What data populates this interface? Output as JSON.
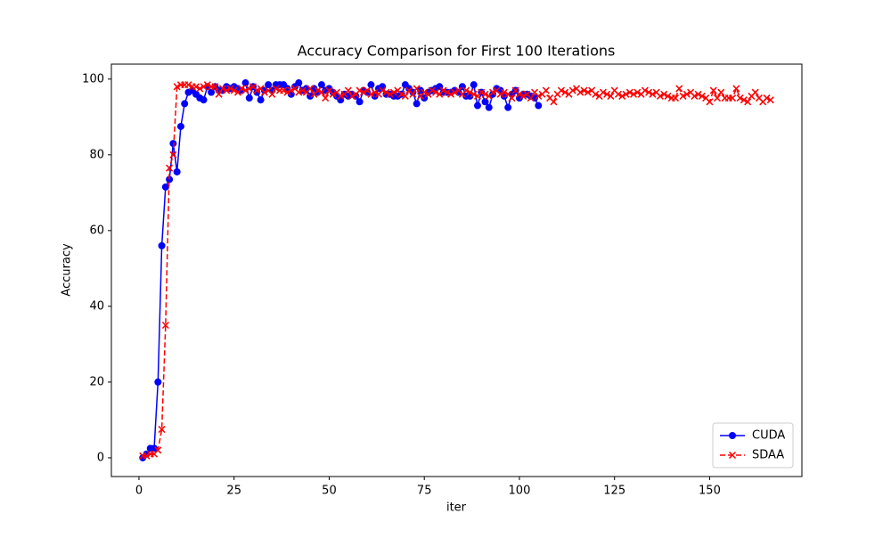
{
  "chart_data": {
    "type": "line",
    "title": "Accuracy Comparison for First 100 Iterations",
    "x_label": "iter",
    "y_label": "Accuracy",
    "xlim": [
      -7.25,
      174.25
    ],
    "xticks": [
      0,
      25,
      50,
      75,
      100,
      125,
      150
    ],
    "ylim": [
      -4.95,
      103.95
    ],
    "yticks": [
      0,
      20,
      40,
      60,
      80,
      100
    ],
    "grid": false,
    "legend": "lower right",
    "series": [
      {
        "name": "CUDA",
        "color": "#0000ff",
        "marker": "circle",
        "linestyle": "solid",
        "x": [
          1,
          2,
          3,
          4,
          5,
          6,
          7,
          8,
          9,
          10,
          11,
          12,
          13,
          14,
          15,
          16,
          17,
          18,
          19,
          20,
          21,
          22,
          23,
          24,
          25,
          26,
          27,
          28,
          29,
          30,
          31,
          32,
          33,
          34,
          35,
          36,
          37,
          38,
          39,
          40,
          41,
          42,
          43,
          44,
          45,
          46,
          47,
          48,
          49,
          50,
          51,
          52,
          53,
          54,
          55,
          56,
          57,
          58,
          59,
          60,
          61,
          62,
          63,
          64,
          65,
          66,
          67,
          68,
          69,
          70,
          71,
          72,
          73,
          74,
          75,
          76,
          77,
          78,
          79,
          80,
          81,
          82,
          83,
          84,
          85,
          86,
          87,
          88,
          89,
          90,
          91,
          92,
          93,
          94,
          95,
          96,
          97,
          98,
          99,
          100,
          101,
          102,
          103,
          104,
          105
        ],
        "values": [
          0,
          1,
          2.5,
          2.5,
          20,
          56,
          71.5,
          73.5,
          83,
          75.5,
          87.5,
          93.5,
          96.5,
          97,
          96,
          95,
          94.5,
          98,
          96.5,
          98,
          97,
          97,
          98,
          97.5,
          98,
          97.5,
          97,
          99,
          95,
          98,
          96.5,
          94.5,
          97,
          98.5,
          97,
          98.5,
          98.5,
          98.5,
          97.5,
          96,
          98,
          99,
          97,
          97.5,
          95.5,
          97.5,
          96.5,
          98.5,
          97,
          97.5,
          96.5,
          95.5,
          94.5,
          96,
          95.5,
          96,
          95.5,
          94,
          97,
          96.5,
          98.5,
          95.5,
          97.5,
          98,
          96,
          96,
          95.5,
          95.5,
          96,
          98.5,
          97.5,
          96.5,
          93.5,
          97,
          95,
          96.5,
          97,
          97.5,
          98,
          96.5,
          96.5,
          96.5,
          97,
          96.5,
          98,
          95.5,
          95.5,
          98.5,
          93,
          96.5,
          94,
          92.5,
          96,
          97.5,
          97,
          95.5,
          92.5,
          96,
          97,
          95,
          96,
          96,
          95.5,
          95,
          93
        ]
      },
      {
        "name": "SDAA",
        "color": "#ff0000",
        "marker": "x",
        "linestyle": "dashed",
        "x": [
          1,
          2,
          3,
          4,
          5,
          6,
          7,
          8,
          9,
          10,
          11,
          12,
          13,
          14,
          15,
          16,
          17,
          18,
          19,
          20,
          21,
          22,
          23,
          24,
          25,
          26,
          27,
          28,
          29,
          30,
          31,
          32,
          33,
          34,
          35,
          36,
          37,
          38,
          39,
          40,
          41,
          42,
          43,
          44,
          45,
          46,
          47,
          48,
          49,
          50,
          51,
          52,
          53,
          54,
          55,
          56,
          57,
          58,
          59,
          60,
          61,
          62,
          63,
          64,
          65,
          66,
          67,
          68,
          69,
          70,
          71,
          72,
          73,
          74,
          75,
          76,
          77,
          78,
          79,
          80,
          81,
          82,
          83,
          84,
          85,
          86,
          87,
          88,
          89,
          90,
          91,
          92,
          93,
          94,
          95,
          96,
          97,
          98,
          99,
          100,
          101,
          102,
          103,
          104,
          105,
          106,
          107,
          108,
          109,
          110,
          111,
          112,
          113,
          114,
          115,
          116,
          117,
          118,
          119,
          120,
          121,
          122,
          123,
          124,
          125,
          126,
          127,
          128,
          129,
          130,
          131,
          132,
          133,
          134,
          135,
          136,
          137,
          138,
          139,
          140,
          141,
          142,
          143,
          144,
          145,
          146,
          147,
          148,
          149,
          150,
          151,
          152,
          153,
          154,
          155,
          156,
          157,
          158,
          159,
          160,
          161,
          162,
          163,
          164,
          165,
          166
        ],
        "values": [
          0.5,
          0.5,
          1,
          1,
          2,
          7.5,
          35,
          76.5,
          80,
          98,
          98.5,
          98.5,
          98.5,
          98,
          98,
          97.5,
          98,
          98.5,
          98,
          98,
          96,
          97.5,
          97,
          97.5,
          97,
          96.5,
          97.5,
          97,
          97.5,
          98,
          97,
          97.5,
          96.5,
          97,
          96,
          97.5,
          97,
          97,
          96.5,
          97,
          97.5,
          96.5,
          97,
          96.5,
          97.5,
          96,
          97,
          96.5,
          95,
          97,
          96,
          96.5,
          95.5,
          96,
          97,
          95.5,
          96,
          97,
          96.5,
          97,
          96,
          96.5,
          96,
          97,
          96.5,
          96,
          96.5,
          97,
          96,
          95.5,
          97,
          96,
          97.5,
          95.5,
          96.5,
          96,
          97,
          96.5,
          96,
          97,
          96.5,
          96,
          96.5,
          97,
          96,
          97,
          96.5,
          96,
          95.5,
          96.5,
          96,
          95.5,
          96.5,
          97,
          96,
          96.5,
          96,
          95,
          97,
          96,
          95.5,
          96,
          95,
          96.5,
          95.5,
          96,
          97,
          95,
          94,
          96,
          97,
          96.5,
          96,
          97,
          97.5,
          96.5,
          97,
          96.5,
          97,
          96,
          95.5,
          96.5,
          96,
          95.5,
          97,
          96,
          95.5,
          96,
          96.5,
          96,
          96.5,
          96,
          97,
          96.5,
          96,
          96.5,
          95.5,
          96,
          95.5,
          95,
          95,
          97.5,
          95.5,
          96,
          96.5,
          95.5,
          96,
          95.5,
          95,
          94,
          97,
          95,
          96.5,
          95,
          95,
          95,
          97.5,
          95,
          94.5,
          94,
          95.5,
          96.5,
          95,
          94,
          95,
          94.5
        ]
      }
    ]
  }
}
